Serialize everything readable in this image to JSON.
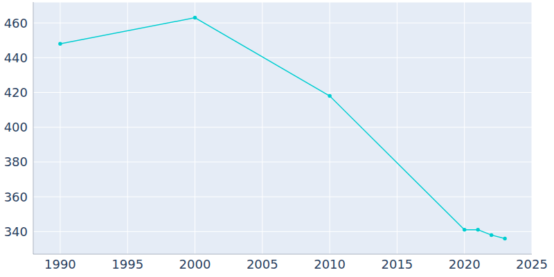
{
  "chart_data": {
    "type": "line",
    "x": [
      1990,
      2000,
      2010,
      2020,
      2021,
      2022,
      2023
    ],
    "values": [
      448,
      463,
      418,
      341,
      341,
      338,
      336
    ],
    "color": "#00ced1",
    "marker": "circle",
    "xlim": [
      1988,
      2025
    ],
    "xticks": [
      1990,
      1995,
      2000,
      2005,
      2010,
      2015,
      2020,
      2025
    ],
    "ylim": [
      327,
      472
    ],
    "yticks": [
      340,
      360,
      380,
      400,
      420,
      440,
      460
    ],
    "grid": true
  }
}
